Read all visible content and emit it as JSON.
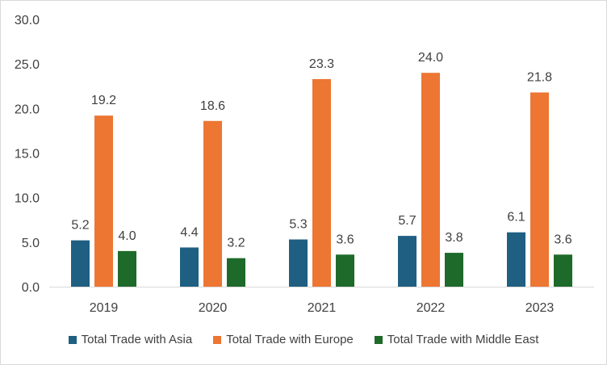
{
  "chart_data": {
    "type": "bar",
    "title": "",
    "xlabel": "",
    "ylabel": "",
    "categories": [
      "2019",
      "2020",
      "2021",
      "2022",
      "2023"
    ],
    "ylim": [
      0,
      30
    ],
    "yticks": [
      "0.0",
      "5.0",
      "10.0",
      "15.0",
      "20.0",
      "25.0",
      "30.0"
    ],
    "grid": false,
    "legend_position": "bottom",
    "series": [
      {
        "name": "Total Trade with Asia",
        "color": "#1f5f82",
        "values": [
          5.2,
          4.4,
          5.3,
          5.7,
          6.1
        ],
        "labels": [
          "5.2",
          "4.4",
          "5.3",
          "5.7",
          "6.1"
        ]
      },
      {
        "name": "Total Trade with Europe",
        "color": "#ed7633",
        "values": [
          19.2,
          18.6,
          23.3,
          24.0,
          21.8
        ],
        "labels": [
          "19.2",
          "18.6",
          "23.3",
          "24.0",
          "21.8"
        ]
      },
      {
        "name": "Total Trade with Middle East",
        "color": "#1e6a2a",
        "values": [
          4.0,
          3.2,
          3.6,
          3.8,
          3.6
        ],
        "labels": [
          "4.0",
          "3.2",
          "3.6",
          "3.8",
          "3.6"
        ]
      }
    ]
  }
}
